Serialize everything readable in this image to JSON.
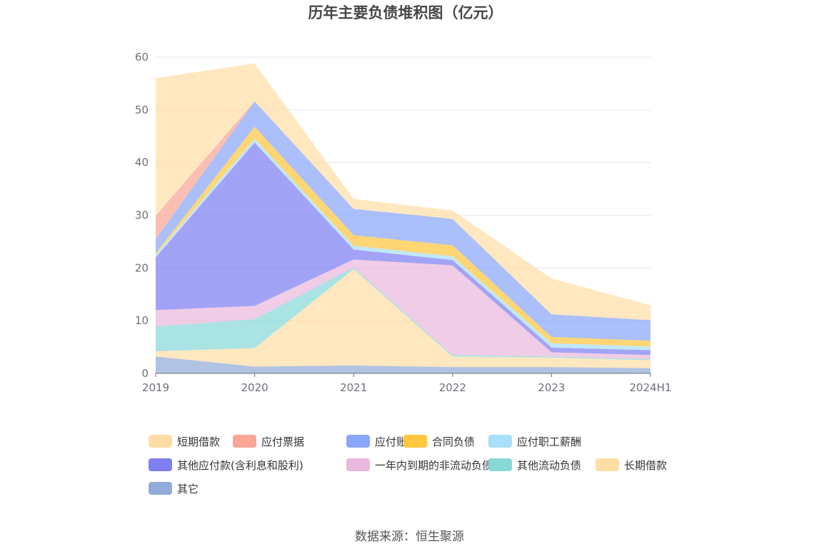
{
  "chart_data": {
    "type": "area",
    "stacked": true,
    "title": "历年主要负债堆积图（亿元）",
    "categories": [
      "2019",
      "2020",
      "2021",
      "2022",
      "2023",
      "2024H1"
    ],
    "ylim": [
      0,
      60
    ],
    "yticks": [
      0,
      10,
      20,
      30,
      40,
      50,
      60
    ],
    "grid": true,
    "legend_position": "bottom",
    "series": [
      {
        "name": "其它",
        "color": "#91acd8",
        "values": [
          3.2,
          1.3,
          1.5,
          1.2,
          1.2,
          1.0
        ]
      },
      {
        "name": "长期借款",
        "color": "#ffdea6",
        "values": [
          1.0,
          3.5,
          18.3,
          2.0,
          1.8,
          1.5
        ]
      },
      {
        "name": "其他流动负债",
        "color": "#88d8d8",
        "values": [
          4.7,
          5.5,
          0.3,
          0.3,
          0.2,
          0.2
        ]
      },
      {
        "name": "一年内到期的非流动负债",
        "color": "#eab8dc",
        "values": [
          3.1,
          2.5,
          1.5,
          17.0,
          0.8,
          0.8
        ]
      },
      {
        "name": "其他应付款(含利息和股利)",
        "color": "#7e7ff2",
        "values": [
          10.0,
          31.0,
          1.9,
          1.0,
          0.9,
          0.9
        ]
      },
      {
        "name": "应付职工薪酬",
        "color": "#a8dffa",
        "values": [
          0.5,
          0.7,
          0.7,
          0.7,
          0.8,
          0.7
        ]
      },
      {
        "name": "合同负债",
        "color": "#ffc63e",
        "values": [
          0.3,
          2.3,
          2.0,
          2.1,
          1.2,
          1.1
        ]
      },
      {
        "name": "应付账款",
        "color": "#8aa6fa",
        "values": [
          2.7,
          4.8,
          5.0,
          5.0,
          4.3,
          3.9
        ]
      },
      {
        "name": "应付票据",
        "color": "#faa596",
        "values": [
          4.4,
          0.0,
          0.0,
          0.0,
          0.0,
          0.0
        ]
      },
      {
        "name": "短期借款",
        "color": "#ffdea6",
        "values": [
          26.1,
          7.2,
          1.9,
          1.6,
          6.8,
          2.8
        ]
      }
    ]
  },
  "legend_order": [
    "短期借款",
    "应付票据",
    "应付账款",
    "合同负债",
    "应付职工薪酬",
    "其他应付款(含利息和股利)",
    "一年内到期的非流动负债",
    "其他流动负债",
    "长期借款",
    "其它"
  ],
  "source": "数据来源：恒生聚源"
}
